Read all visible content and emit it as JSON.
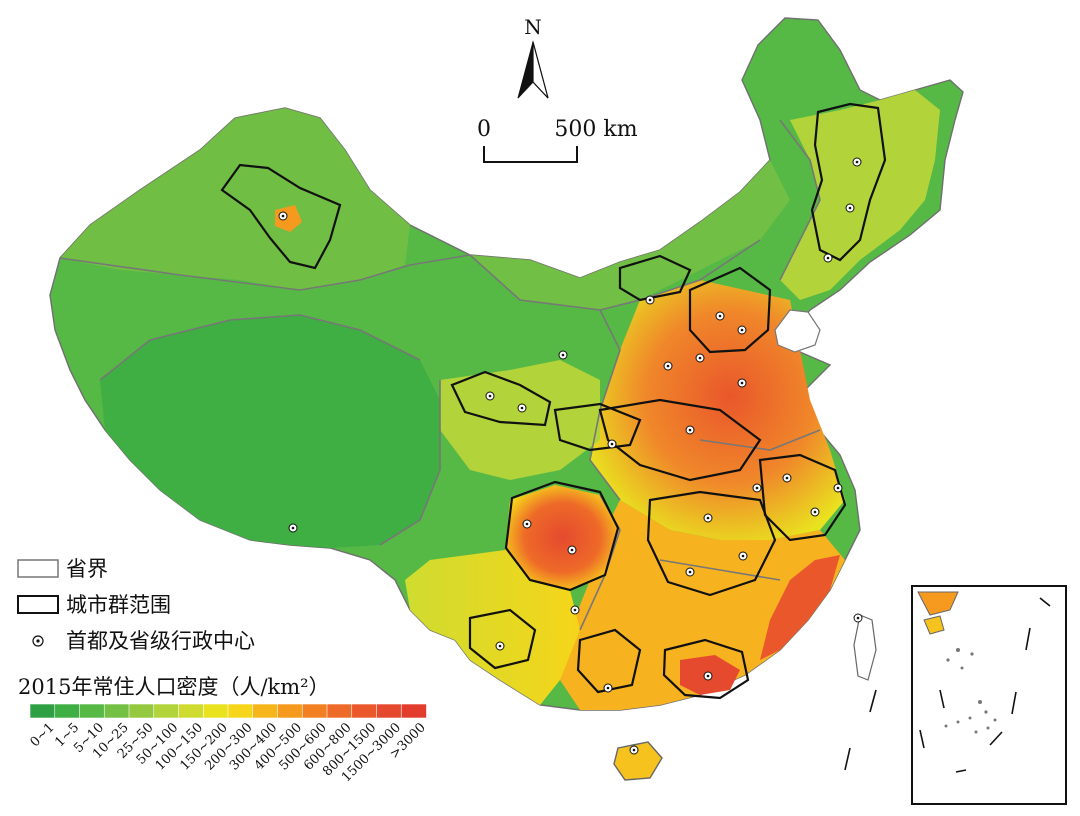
{
  "map": {
    "north_label": "N",
    "scale": {
      "start": "0",
      "end": "500 km"
    }
  },
  "legend": {
    "province_boundary": "省界",
    "urban_agglomeration": "城市群范围",
    "capital": "首都及省级行政中心",
    "density_title": "2015年常住人口密度（人/km²）",
    "classes": [
      {
        "label": "0~1",
        "color": "#2ea043"
      },
      {
        "label": "1~5",
        "color": "#3fae43"
      },
      {
        "label": "5~10",
        "color": "#56b946"
      },
      {
        "label": "10~25",
        "color": "#74c044"
      },
      {
        "label": "25~50",
        "color": "#93c83f"
      },
      {
        "label": "50~100",
        "color": "#b2d33a"
      },
      {
        "label": "100~150",
        "color": "#cfdc2f"
      },
      {
        "label": "150~200",
        "color": "#e9e21f"
      },
      {
        "label": "200~300",
        "color": "#f6d51a"
      },
      {
        "label": "300~400",
        "color": "#f7b51c"
      },
      {
        "label": "400~500",
        "color": "#f59a1e"
      },
      {
        "label": "500~600",
        "color": "#f27f22"
      },
      {
        "label": "600~800",
        "color": "#ee6a28"
      },
      {
        "label": "800~1500",
        "color": "#e9572b"
      },
      {
        "label": "1500~3000",
        "color": "#e54a2e"
      },
      {
        "label": ">3000",
        "color": "#e23c2e"
      }
    ]
  }
}
